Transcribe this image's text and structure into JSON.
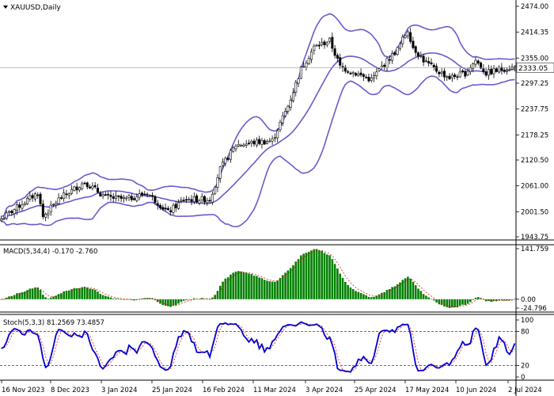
{
  "chart_title": "XAUUSD,Daily",
  "colors": {
    "bands": "#6a5acd",
    "candle": "#000000",
    "macd_hist": "#008000",
    "macd_signal": "#d21e1e",
    "stoch_main": "#0000cd",
    "stoch_signal": "#d21e1e",
    "level_line": "#c80000",
    "price_tag": "#ffffff"
  },
  "chart_data": [
    {
      "type": "candlestick",
      "title": "XAUUSD,Daily",
      "x_labels": [
        "16 Nov 2023",
        "8 Dec 2023",
        "3 Jan 2024",
        "25 Jan 2024",
        "16 Feb 2024",
        "11 Mar 2024",
        "3 Apr 2024",
        "25 Apr 2024",
        "17 May 2024",
        "10 Jun 2024",
        "2 Jul 2024"
      ],
      "y_ticks": [
        "2474.00",
        "2414.35",
        "2355.00",
        "2297.25",
        "2237.75",
        "2178.25",
        "2120.50",
        "2061.00",
        "2001.50",
        "1943.75"
      ],
      "ylim": [
        1943.75,
        2474.0
      ],
      "current_price": "2333.05",
      "close_keypoints": [
        [
          0,
          1985
        ],
        [
          8,
          2020
        ],
        [
          14,
          2045
        ],
        [
          16,
          1990
        ],
        [
          22,
          2030
        ],
        [
          32,
          2070
        ],
        [
          40,
          2035
        ],
        [
          48,
          2030
        ],
        [
          56,
          2045
        ],
        [
          64,
          2000
        ],
        [
          70,
          2030
        ],
        [
          80,
          2030
        ],
        [
          84,
          2100
        ],
        [
          90,
          2155
        ],
        [
          96,
          2160
        ],
        [
          104,
          2165
        ],
        [
          110,
          2245
        ],
        [
          115,
          2330
        ],
        [
          120,
          2380
        ],
        [
          126,
          2395
        ],
        [
          130,
          2335
        ],
        [
          136,
          2320
        ],
        [
          142,
          2305
        ],
        [
          146,
          2335
        ],
        [
          152,
          2375
        ],
        [
          156,
          2420
        ],
        [
          158,
          2380
        ],
        [
          162,
          2350
        ],
        [
          166,
          2330
        ],
        [
          172,
          2310
        ],
        [
          178,
          2320
        ],
        [
          182,
          2350
        ],
        [
          186,
          2320
        ],
        [
          192,
          2330
        ],
        [
          196,
          2333
        ]
      ],
      "overlay": "Bollinger Bands (upper, middle, lower)"
    },
    {
      "type": "bar",
      "title": "MACD(5,34,4) -0.170 -2.760",
      "indicator": "MACD",
      "params": "5,34,4",
      "values": [
        "-0.170",
        "-2.760"
      ],
      "y_ticks": [
        "141.759",
        "0.00",
        "-24.796"
      ],
      "ylim": [
        -24.796,
        141.759
      ]
    },
    {
      "type": "line",
      "title": "Stoch(5,3,3) 81.2569 73.4857",
      "indicator": "Stoch",
      "params": "5,3,3",
      "values": [
        "81.2569",
        "73.4857"
      ],
      "y_ticks": [
        "100",
        "80",
        "20",
        "0"
      ],
      "ylim": [
        0,
        100
      ],
      "series": [
        {
          "role": "main"
        },
        {
          "role": "signal"
        }
      ]
    }
  ]
}
